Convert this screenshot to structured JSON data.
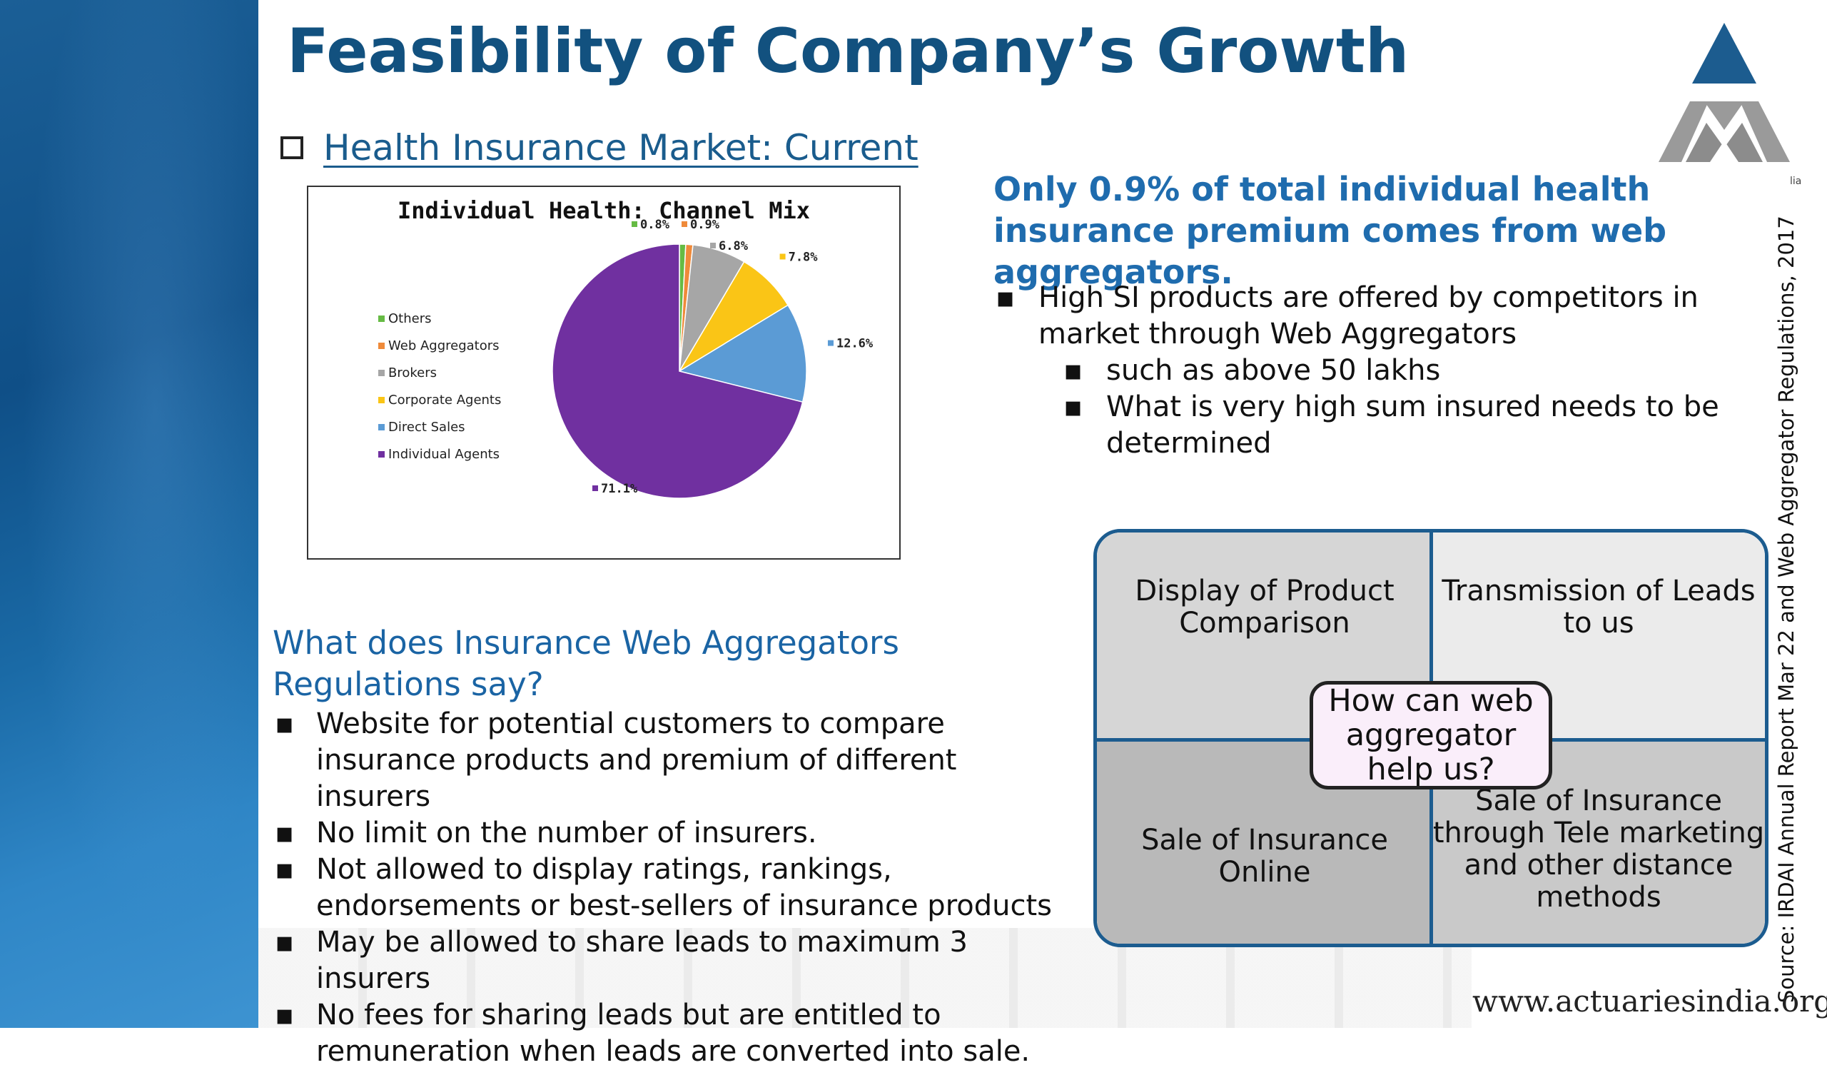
{
  "slide": {
    "title": "Feasibility of Company’s Growth",
    "section_heading": "Health Insurance Market: Current",
    "headline": "Only 0.9% of total individual health insurance premium comes from web aggregators.",
    "bullets": [
      {
        "text": "High SI products are offered by competitors in market through Web Aggregators",
        "sub": [
          "such as above 50 lakhs",
          "What is very high sum insured needs to be determined"
        ]
      }
    ],
    "regulations_title": "What does Insurance Web Aggregators Regulations say?",
    "regulations": [
      "Website for potential customers to compare insurance products and premium of different insurers",
      "No limit on the number of insurers.",
      "Not allowed to display ratings, rankings, endorsements or best-sellers of insurance products",
      "May be allowed to share leads to maximum 3 insurers",
      "No fees for sharing leads but are entitled to remuneration when leads are converted into sale."
    ],
    "diagram": {
      "center": "How can web aggregator help us?",
      "top_left": "Display of Product Comparison",
      "top_right": "Transmission of Leads to us",
      "bottom_left": "Sale of Insurance Online",
      "bottom_right": "Sale of Insurance through Tele marketing and other distance methods"
    },
    "source": "Source: IRDAI Annual Report Mar 22 and Web Aggregator Regulations, 2017",
    "website": "www.actuariesindia.org",
    "logo_mark": "lia",
    "bullet_glyph": "▪",
    "colors": {
      "title": "#12517f",
      "headline": "#1f6cae",
      "sidebar": "#1b5f96",
      "diagram_border": "#1c5c8f"
    }
  },
  "chart_data": {
    "type": "pie",
    "title": "Individual Health: Channel Mix",
    "legend_position": "left",
    "categories": [
      "Others",
      "Web Aggregators",
      "Brokers",
      "Corporate Agents",
      "Direct Sales",
      "Individual Agents"
    ],
    "values": [
      0.8,
      0.9,
      6.8,
      7.8,
      12.6,
      71.1
    ],
    "labels": [
      "0.8%",
      "0.9%",
      "6.8%",
      "7.8%",
      "12.6%",
      "71.1%"
    ],
    "colors": [
      "#66bb44",
      "#ef8a3a",
      "#a6a6a6",
      "#fac516",
      "#5b9bd5",
      "#7030a0"
    ]
  }
}
